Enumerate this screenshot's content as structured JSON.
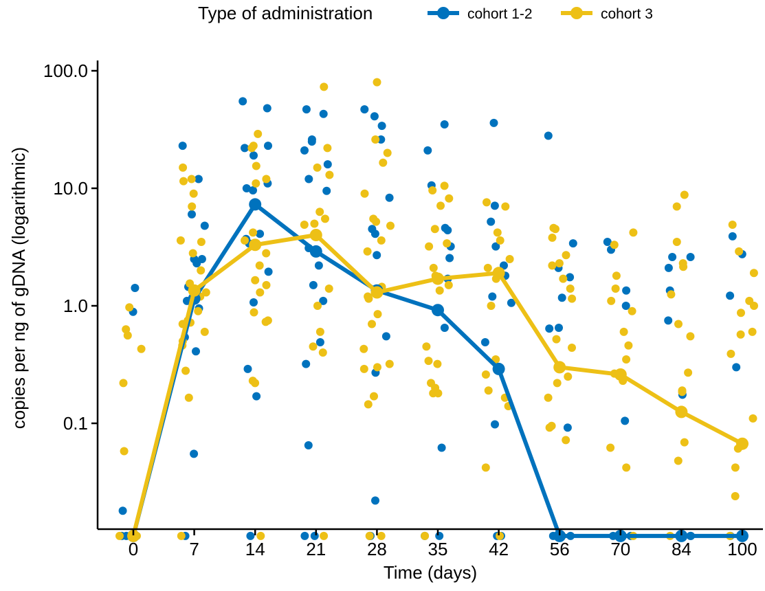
{
  "chart_data": {
    "type": "line+scatter",
    "title": "",
    "xlabel": "Time (days)",
    "ylabel": "copies per ng of gDNA (logarithmic)",
    "y_scale": "log",
    "x_categories": [
      "0",
      "7",
      "14",
      "21",
      "28",
      "35",
      "42",
      "56",
      "70",
      "84",
      "100"
    ],
    "y_ticks": [
      {
        "value": 0.1,
        "label": "0.1"
      },
      {
        "value": 1,
        "label": "1.0"
      },
      {
        "value": 10,
        "label": "10.0"
      },
      {
        "value": 100,
        "label": "100.0"
      }
    ],
    "ylim": [
      0.011,
      125
    ],
    "zero_floor": 0.011,
    "grid": false,
    "legend": {
      "title": "Type of administration",
      "position": "top"
    },
    "series": [
      {
        "name": "cohort 1-2",
        "color": "#0072BD",
        "mean_line": [
          0.011,
          1.15,
          7.3,
          2.9,
          1.35,
          0.92,
          0.29,
          0.011,
          0.011,
          0.011,
          0.011
        ],
        "points": {
          "0": [
            0.89,
            1.42,
            0.018,
            0.011,
            0.011,
            0.011,
            0.011
          ],
          "7": [
            4.8,
            2.3,
            6.0,
            1.45,
            2.5,
            12.0,
            23.0,
            2.5,
            1.1,
            0.95,
            0.54,
            0.41,
            0.055,
            0.011
          ],
          "14": [
            55.0,
            48.0,
            23.0,
            22.0,
            19.0,
            11.0,
            10.0,
            9.6,
            7.4,
            4.1,
            3.4,
            3.7,
            1.95,
            1.07,
            0.29,
            0.17,
            0.011
          ],
          "21": [
            47.0,
            43.0,
            26.0,
            25.0,
            21.0,
            16.0,
            12.0,
            9.5,
            4.0,
            3.1,
            2.2,
            1.5,
            1.1,
            0.49,
            0.32,
            0.065,
            0.011,
            0.011
          ],
          "28": [
            47.0,
            41.0,
            34.0,
            26.0,
            8.3,
            4.5,
            4.1,
            2.7,
            1.3,
            0.55,
            0.27,
            0.022,
            0.011,
            0.011
          ],
          "35": [
            35.0,
            21.0,
            10.6,
            4.6,
            4.4,
            3.2,
            2.55,
            1.7,
            0.65,
            0.062,
            0.011,
            0.011
          ],
          "42": [
            36.0,
            7.1,
            5.2,
            3.2,
            2.2,
            1.8,
            1.2,
            1.06,
            0.49,
            0.098,
            0.011,
            0.011
          ],
          "56": [
            28.0,
            3.4,
            2.1,
            1.75,
            1.17,
            0.65,
            0.64,
            0.092,
            0.011,
            0.011
          ],
          "70": [
            3.5,
            3.0,
            1.35,
            1.0,
            0.105,
            0.011,
            0.011
          ],
          "84": [
            2.6,
            2.6,
            2.1,
            1.35,
            0.75,
            0.175,
            0.011,
            0.011
          ],
          "100": [
            3.9,
            2.75,
            1.22,
            0.3,
            0.011,
            0.011
          ]
        }
      },
      {
        "name": "cohort 3",
        "color": "#EDC016",
        "mean_line": [
          0.011,
          1.35,
          3.3,
          4.0,
          1.3,
          1.7,
          1.9,
          0.3,
          0.26,
          0.125,
          0.067
        ],
        "points": {
          "0": [
            0.97,
            0.63,
            0.56,
            0.43,
            0.22,
            0.058,
            0.011,
            0.011
          ],
          "7": [
            15.0,
            12.0,
            11.5,
            9.0,
            7.0,
            3.6,
            3.5,
            2.8,
            2.0,
            1.55,
            1.3,
            1.2,
            0.9,
            0.75,
            0.72,
            0.7,
            0.6,
            0.5,
            0.46,
            0.28,
            0.165,
            0.011
          ],
          "14": [
            29.0,
            23.0,
            22.0,
            15.5,
            12.0,
            11.0,
            4.2,
            3.6,
            2.8,
            2.2,
            1.65,
            1.5,
            1.3,
            0.88,
            0.75,
            0.73,
            0.23,
            0.22,
            0.011
          ],
          "21": [
            73.0,
            22.0,
            15.0,
            13.0,
            6.3,
            5.5,
            5.0,
            4.9,
            1.4,
            1.0,
            0.6,
            0.45,
            0.4,
            0.011
          ],
          "28": [
            80.0,
            26.0,
            20.0,
            16.5,
            9.0,
            5.5,
            5.2,
            4.8,
            3.6,
            2.9,
            1.45,
            1.2,
            1.15,
            0.85,
            0.7,
            0.43,
            0.32,
            0.3,
            0.29,
            0.17,
            0.145,
            0.011,
            0.011
          ],
          "35": [
            10.5,
            9.6,
            8.2,
            7.1,
            4.5,
            3.4,
            3.2,
            2.1,
            1.8,
            1.5,
            1.35,
            0.45,
            0.34,
            0.32,
            0.22,
            0.2,
            0.18,
            0.18,
            0.011
          ],
          "42": [
            7.6,
            7.0,
            4.2,
            3.6,
            2.5,
            2.1,
            1.7,
            1.0,
            0.35,
            0.26,
            0.19,
            0.165,
            0.14,
            0.042,
            0.011
          ],
          "56": [
            4.6,
            4.5,
            3.8,
            2.7,
            2.3,
            2.2,
            1.7,
            1.4,
            1.15,
            0.52,
            0.44,
            0.25,
            0.22,
            0.165,
            0.095,
            0.092,
            0.072,
            0.011
          ],
          "70": [
            4.2,
            3.3,
            1.8,
            1.4,
            1.1,
            0.9,
            0.6,
            0.46,
            0.35,
            0.265,
            0.23,
            0.062,
            0.042,
            0.011
          ],
          "84": [
            8.8,
            7.0,
            3.5,
            2.3,
            2.15,
            1.25,
            0.7,
            0.55,
            0.27,
            0.19,
            0.185,
            0.069,
            0.048,
            0.011
          ],
          "100": [
            4.9,
            2.9,
            1.9,
            1.1,
            1.0,
            0.87,
            0.6,
            0.57,
            0.39,
            0.11,
            0.061,
            0.042,
            0.024,
            0.011
          ]
        }
      }
    ]
  }
}
